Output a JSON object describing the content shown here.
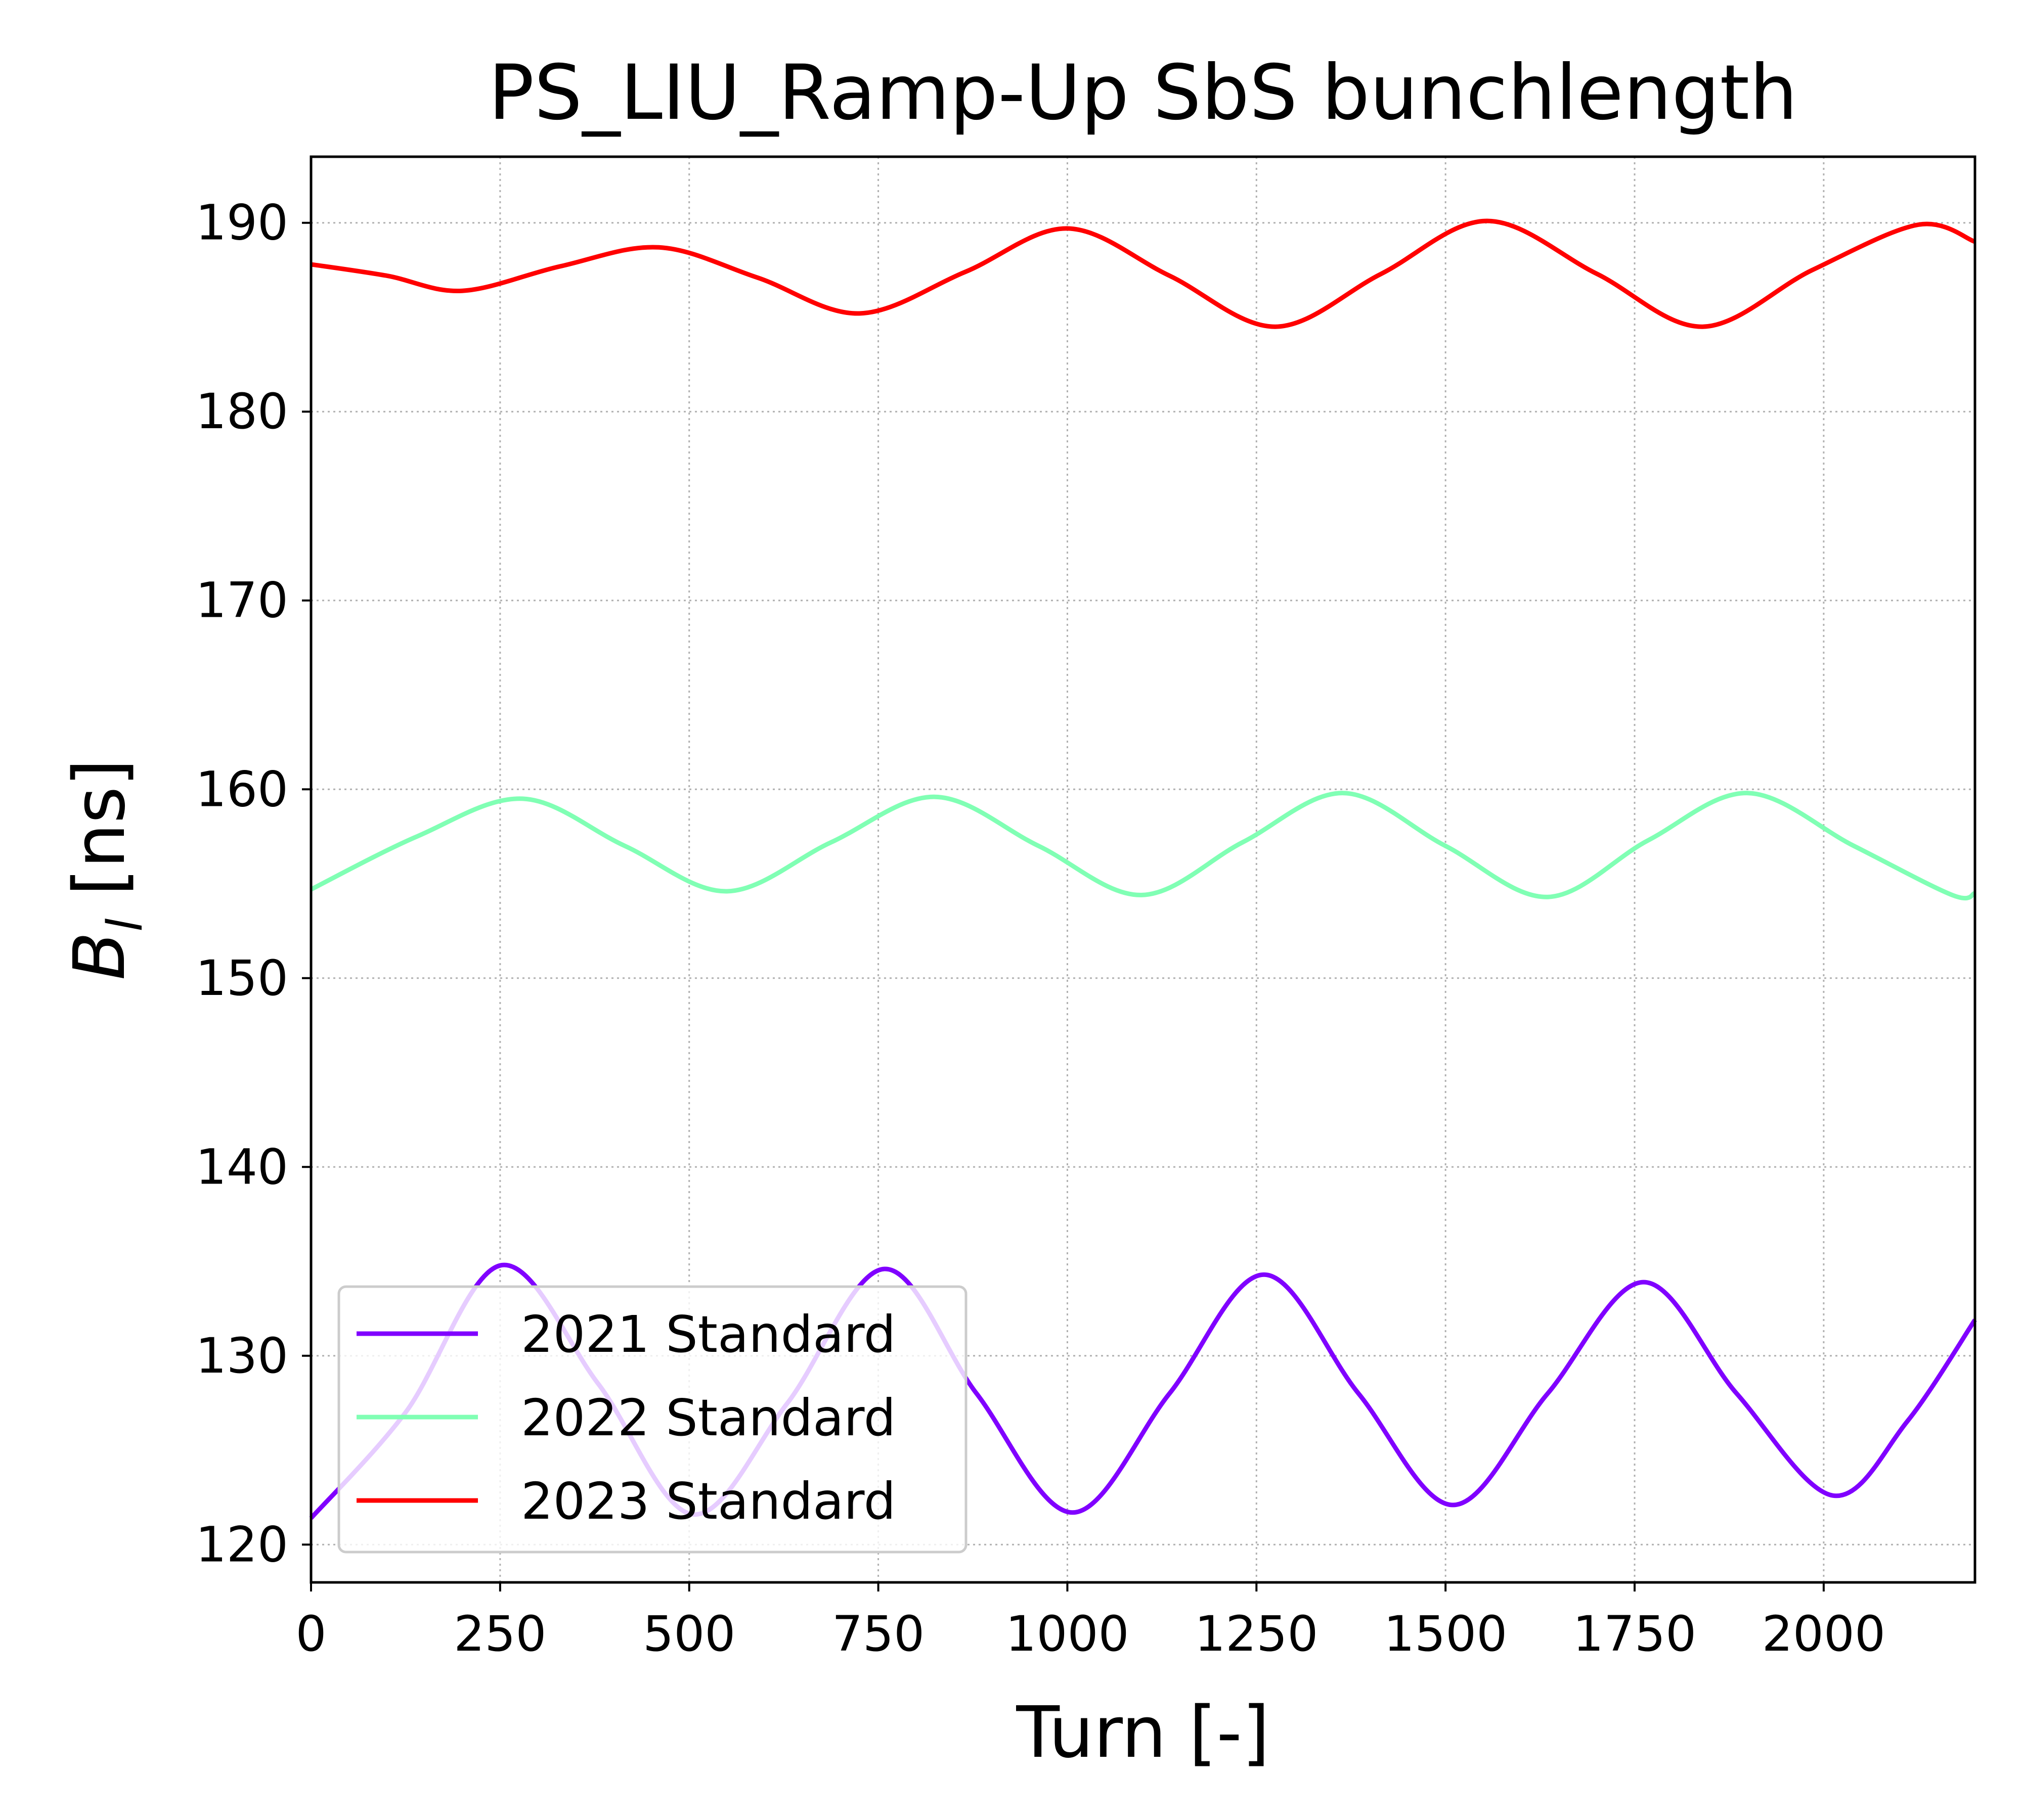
{
  "chart_data": {
    "type": "line",
    "title": "PS_LIU_Ramp-Up SbS bunchlength",
    "xlabel": "Turn [-]",
    "ylabel_main": "B",
    "ylabel_sub": "l",
    "ylabel_unit": " [ns]",
    "xlim": [
      0,
      2200
    ],
    "ylim": [
      118,
      193.5
    ],
    "xticks": [
      0,
      250,
      500,
      750,
      1000,
      1250,
      1500,
      1750,
      2000
    ],
    "yticks": [
      120,
      130,
      140,
      150,
      160,
      170,
      180,
      190
    ],
    "grid": true,
    "legend_position": "lower-left",
    "series": [
      {
        "name": "2021 Standard",
        "color": "#8000ff",
        "x": [
          0,
          125,
          252,
          380,
          505,
          630,
          758,
          880,
          1007,
          1135,
          1260,
          1385,
          1510,
          1635,
          1762,
          1885,
          2012,
          2110,
          2200
        ],
        "y": [
          121.4,
          127.0,
          134.8,
          128.5,
          121.6,
          127.5,
          134.6,
          128.0,
          121.7,
          128.0,
          134.3,
          128.0,
          122.1,
          128.0,
          133.9,
          128.0,
          122.6,
          126.5,
          131.9
        ]
      },
      {
        "name": "2022 Standard",
        "color": "#80ffb4",
        "x": [
          0,
          140,
          280,
          415,
          550,
          688,
          825,
          962,
          1098,
          1232,
          1365,
          1500,
          1635,
          1768,
          1900,
          2040,
          2170,
          2200
        ],
        "y": [
          154.7,
          157.5,
          159.5,
          157.0,
          154.6,
          157.2,
          159.6,
          157.0,
          154.4,
          157.2,
          159.8,
          157.0,
          154.3,
          157.3,
          159.8,
          157.0,
          154.4,
          154.5
        ]
      },
      {
        "name": "2023 Standard",
        "color": "#ff0000",
        "x": [
          0,
          100,
          200,
          330,
          460,
          590,
          725,
          865,
          1000,
          1135,
          1275,
          1415,
          1555,
          1700,
          1840,
          1985,
          2125,
          2200
        ],
        "y": [
          187.8,
          187.2,
          186.4,
          187.7,
          188.7,
          187.1,
          185.2,
          187.4,
          189.7,
          187.2,
          184.5,
          187.3,
          190.1,
          187.3,
          184.5,
          187.5,
          189.9,
          189.0
        ]
      }
    ]
  }
}
